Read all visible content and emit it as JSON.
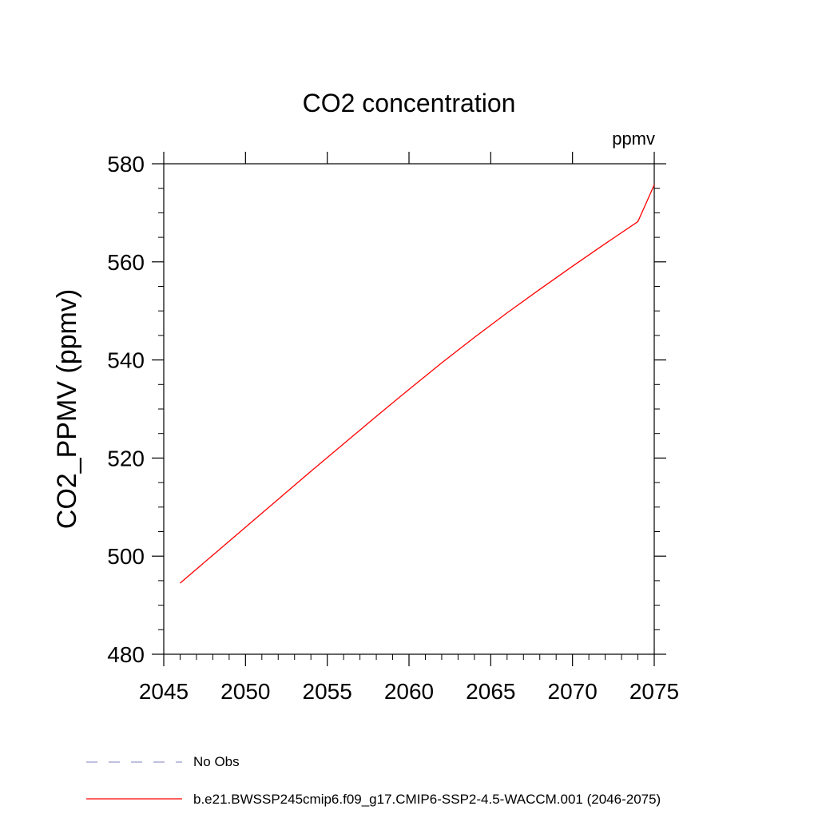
{
  "chart_data": {
    "type": "line",
    "title": "CO2 concentration",
    "units_label": "ppmv",
    "xlabel": "",
    "ylabel": "CO2_PPMV  (ppmv)",
    "xlim": [
      2045,
      2075
    ],
    "ylim": [
      480,
      580
    ],
    "x_ticks": [
      2045,
      2050,
      2055,
      2060,
      2065,
      2070,
      2075
    ],
    "y_ticks": [
      480,
      500,
      520,
      540,
      560,
      580
    ],
    "grid": false,
    "legend_position": "bottom",
    "series": [
      {
        "name": "b.e21.BWSSP245cmip6.f09_g17.CMIP6-SSP2-4.5-WACCM.001 (2046-2075)",
        "color": "#ff0000",
        "style": "solid",
        "x": [
          2046,
          2048,
          2050,
          2052,
          2054,
          2056,
          2058,
          2060,
          2062,
          2064,
          2066,
          2068,
          2070,
          2072,
          2074,
          2075
        ],
        "values": [
          494.5,
          500.2,
          505.9,
          511.6,
          517.3,
          522.9,
          528.5,
          534.0,
          539.4,
          544.6,
          549.6,
          554.4,
          559.1,
          563.7,
          568.2,
          575.7
        ]
      },
      {
        "name": "No Obs",
        "color": "#9999cc",
        "style": "dashed",
        "x": [],
        "values": []
      }
    ]
  }
}
